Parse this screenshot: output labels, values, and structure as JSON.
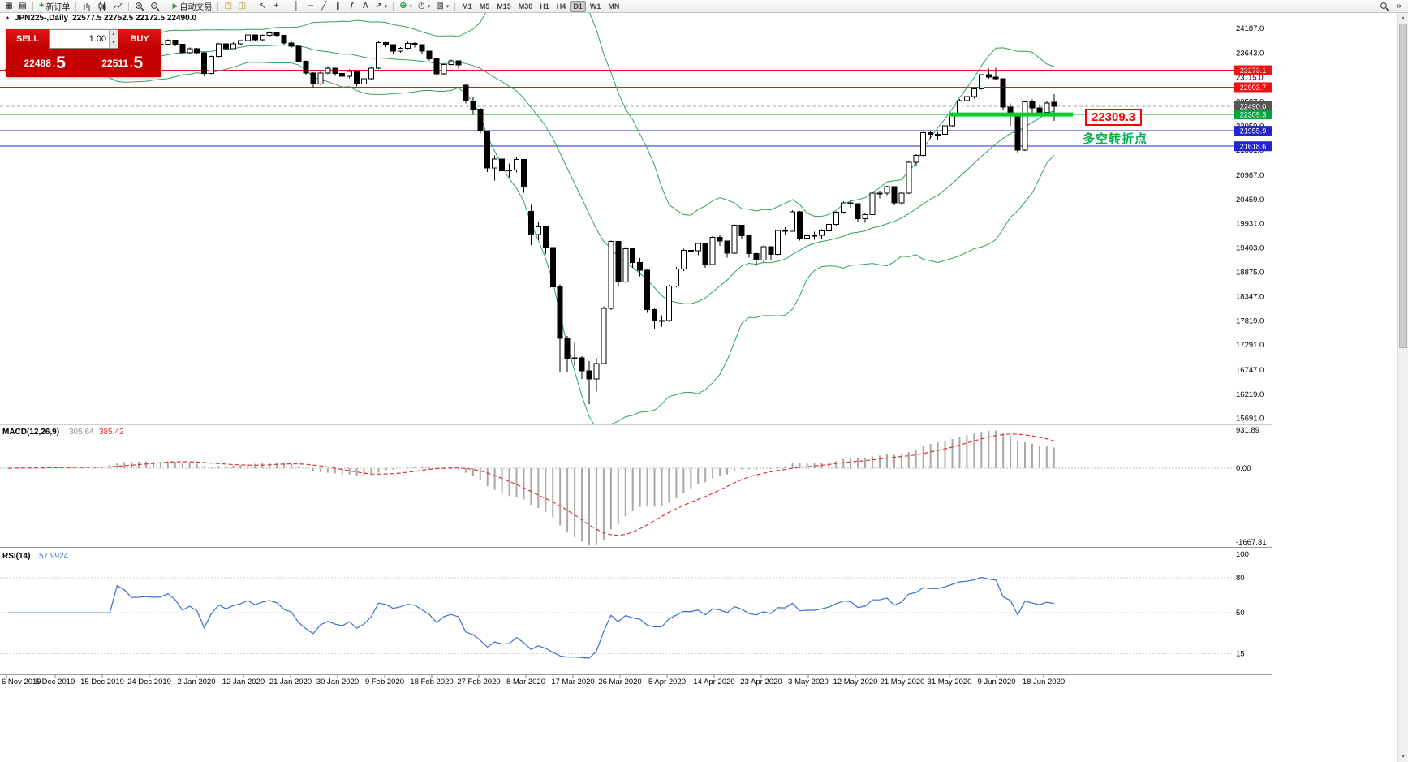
{
  "toolbar": {
    "new_order_label": "新订单",
    "autotrading_label": "自动交易",
    "timeframes": [
      "M1",
      "M5",
      "M15",
      "M30",
      "H1",
      "H4",
      "D1",
      "W1",
      "MN"
    ],
    "active_timeframe": "D1"
  },
  "chart_header": {
    "symbol": "JPN225-,Daily",
    "ohlc": "22577.5 22752.5 22172.5 22490.0"
  },
  "trade_panel": {
    "sell_label": "SELL",
    "buy_label": "BUY",
    "volume": "1.00",
    "sell_price_main": "22488",
    "sell_price_pip": "5",
    "buy_price_main": "22511",
    "buy_price_pip": "5"
  },
  "annotations": {
    "price_label": "22309.3",
    "price_label_color": "#ff0000",
    "note": "多空转折点",
    "note_color": "#00b050"
  },
  "price_axis": {
    "labels": [
      "24187.0",
      "23643.0",
      "23115.0",
      "22587.0",
      "22059.0",
      "21531.0",
      "20987.0",
      "20459.0",
      "19931.0",
      "19403.0",
      "18875.0",
      "18347.0",
      "17819.0",
      "17291.0",
      "16747.0",
      "16219.0",
      "15691.0"
    ],
    "tags": [
      {
        "text": "23273.1",
        "bg": "#ee1111"
      },
      {
        "text": "22903.7",
        "bg": "#ee1111"
      },
      {
        "text": "22490.0",
        "bg": "#555555"
      },
      {
        "text": "22309.3",
        "bg": "#00a53c"
      },
      {
        "text": "21955.9",
        "bg": "#2424cc"
      },
      {
        "text": "21618.6",
        "bg": "#2424cc"
      }
    ]
  },
  "levels": [
    {
      "value": 23273.1,
      "color": "#ee1111",
      "width": 1
    },
    {
      "value": 22903.7,
      "color": "#ee1111",
      "width": 1
    },
    {
      "value": 22490.0,
      "color": "#aaaaaa",
      "width": 1,
      "dash": "4 3"
    },
    {
      "value": 22309.3,
      "color": "#00b43c",
      "width": 1
    },
    {
      "value": 21955.9,
      "color": "#2424cc",
      "width": 1
    },
    {
      "value": 21618.6,
      "color": "#2424cc",
      "width": 1
    }
  ],
  "segment": {
    "value": 22309.3,
    "color": "#00cf30",
    "width": 5
  },
  "macd_panel": {
    "title": "MACD(12,26,9)",
    "value_main": "305.64",
    "value_signal": "385.42",
    "axis": [
      "931.89",
      "0.00",
      "-1667.31"
    ]
  },
  "rsi_panel": {
    "title": "RSI(14)",
    "value": "57.9924",
    "axis": [
      "100",
      "80",
      "50",
      "15"
    ],
    "levels": [
      80,
      50,
      15
    ]
  },
  "date_axis": {
    "labels": [
      "6 Nov 2019",
      "5 Dec 2019",
      "15 Dec 2019",
      "24 Dec 2019",
      "2 Jan 2020",
      "12 Jan 2020",
      "21 Jan 2020",
      "30 Jan 2020",
      "9 Feb 2020",
      "18 Feb 2020",
      "27 Feb 2020",
      "8 Mar 2020",
      "17 Mar 2020",
      "26 Mar 2020",
      "5 Apr 2020",
      "14 Apr 2020",
      "23 Apr 2020",
      "3 May 2020",
      "12 May 2020",
      "21 May 2020",
      "31 May 2020",
      "9 Jun 2020",
      "18 Jun 2020"
    ]
  },
  "chart_data": {
    "type": "candlestick",
    "symbol": "JPN225",
    "timeframe": "Daily",
    "price_range": [
      15580,
      24520
    ],
    "indicators": {
      "bollinger": {
        "period": 20,
        "deviation": 2
      },
      "macd": {
        "fast": 12,
        "slow": 26,
        "signal": 9
      },
      "rsi": {
        "period": 14
      }
    },
    "ohlc": [
      [
        23250,
        23310,
        23180,
        23293
      ],
      [
        23293,
        23400,
        23270,
        23373
      ],
      [
        23373,
        23430,
        23320,
        23380
      ],
      [
        23380,
        23420,
        23250,
        23295
      ],
      [
        23295,
        23350,
        23240,
        23294
      ],
      [
        23294,
        23560,
        23280,
        23530
      ],
      [
        23530,
        23550,
        23350,
        23380
      ],
      [
        23380,
        23410,
        23260,
        23300
      ],
      [
        23300,
        23450,
        23290,
        23424
      ],
      [
        23424,
        23440,
        23310,
        23354
      ],
      [
        23354,
        23460,
        23330,
        23430
      ],
      [
        23430,
        23470,
        23360,
        23410
      ],
      [
        23410,
        23450,
        23340,
        23392
      ],
      [
        23392,
        23460,
        23350,
        23424
      ],
      [
        23424,
        23980,
        23420,
        23952
      ],
      [
        23952,
        24050,
        23900,
        24023
      ],
      [
        24023,
        24060,
        23910,
        23952
      ],
      [
        23952,
        23970,
        23780,
        23817
      ],
      [
        23817,
        23870,
        23770,
        23821
      ],
      [
        23821,
        23880,
        23790,
        23841
      ],
      [
        23841,
        23870,
        23790,
        23830
      ],
      [
        23830,
        23870,
        23800,
        23838
      ],
      [
        23838,
        23950,
        23820,
        23924
      ],
      [
        23924,
        23940,
        23800,
        23837
      ],
      [
        23837,
        23850,
        23630,
        23657
      ],
      [
        23657,
        23770,
        23640,
        23740
      ],
      [
        23740,
        23760,
        23620,
        23656
      ],
      [
        23656,
        23670,
        23150,
        23205
      ],
      [
        23205,
        23590,
        23190,
        23576
      ],
      [
        23576,
        23870,
        23560,
        23851
      ],
      [
        23851,
        23860,
        23700,
        23740
      ],
      [
        23740,
        23880,
        23730,
        23851
      ],
      [
        23851,
        23930,
        23820,
        23916
      ],
      [
        23916,
        24060,
        23900,
        24041
      ],
      [
        24041,
        24050,
        23900,
        23933
      ],
      [
        23933,
        24050,
        23920,
        24031
      ],
      [
        24031,
        24120,
        24000,
        24083
      ],
      [
        24083,
        24100,
        23990,
        24031
      ],
      [
        24031,
        24040,
        23830,
        23865
      ],
      [
        23865,
        23900,
        23760,
        23795
      ],
      [
        23795,
        23810,
        23440,
        23469
      ],
      [
        23469,
        23490,
        23180,
        23216
      ],
      [
        23216,
        23230,
        22890,
        22977
      ],
      [
        22977,
        23250,
        22950,
        23215
      ],
      [
        23215,
        23360,
        23190,
        23320
      ],
      [
        23320,
        23330,
        23150,
        23205
      ],
      [
        23205,
        23240,
        23070,
        23139
      ],
      [
        23139,
        23290,
        23100,
        23250
      ],
      [
        23250,
        23260,
        22920,
        22972
      ],
      [
        22972,
        23120,
        22940,
        23085
      ],
      [
        23085,
        23350,
        23060,
        23320
      ],
      [
        23320,
        23900,
        23300,
        23874
      ],
      [
        23874,
        23890,
        23780,
        23828
      ],
      [
        23828,
        23840,
        23630,
        23686
      ],
      [
        23686,
        23780,
        23650,
        23750
      ],
      [
        23750,
        23890,
        23730,
        23861
      ],
      [
        23861,
        23880,
        23770,
        23828
      ],
      [
        23828,
        23840,
        23640,
        23687
      ],
      [
        23687,
        23700,
        23480,
        23523
      ],
      [
        23523,
        23530,
        23150,
        23194
      ],
      [
        23194,
        23420,
        23180,
        23401
      ],
      [
        23401,
        23500,
        23380,
        23479
      ],
      [
        23479,
        23490,
        23310,
        23387
      ],
      [
        22950,
        22970,
        22550,
        22605
      ],
      [
        22605,
        22680,
        22300,
        22426
      ],
      [
        22426,
        22450,
        21900,
        21948
      ],
      [
        21948,
        21960,
        21060,
        21143
      ],
      [
        21143,
        21420,
        20870,
        21344
      ],
      [
        21344,
        21480,
        21040,
        21083
      ],
      [
        21083,
        21240,
        20940,
        21100
      ],
      [
        21100,
        21390,
        21050,
        21329
      ],
      [
        21329,
        21340,
        20610,
        20750
      ],
      [
        20200,
        20340,
        19470,
        19699
      ],
      [
        19699,
        19980,
        19570,
        19867
      ],
      [
        19867,
        19880,
        19270,
        19416
      ],
      [
        19416,
        19430,
        18340,
        18560
      ],
      [
        18560,
        18610,
        16690,
        17431
      ],
      [
        17431,
        17490,
        16700,
        17002
      ],
      [
        17002,
        17340,
        16840,
        17012
      ],
      [
        17012,
        17050,
        16550,
        16727
      ],
      [
        16727,
        16940,
        16000,
        16553
      ],
      [
        16553,
        17000,
        16280,
        16888
      ],
      [
        16888,
        18130,
        16880,
        18092
      ],
      [
        18092,
        19560,
        18050,
        19547
      ],
      [
        19547,
        19560,
        18560,
        18665
      ],
      [
        18665,
        19420,
        18640,
        19389
      ],
      [
        19389,
        19400,
        18970,
        19085
      ],
      [
        19085,
        19180,
        18790,
        18917
      ],
      [
        18917,
        18950,
        17990,
        18065
      ],
      [
        18065,
        18090,
        17650,
        17819
      ],
      [
        17819,
        17940,
        17690,
        17820
      ],
      [
        17820,
        18600,
        17800,
        18576
      ],
      [
        18576,
        18990,
        18550,
        18950
      ],
      [
        18950,
        19390,
        18900,
        19353
      ],
      [
        19353,
        19420,
        19240,
        19346
      ],
      [
        19346,
        19520,
        19250,
        19499
      ],
      [
        19499,
        19510,
        18970,
        19043
      ],
      [
        19043,
        19660,
        19030,
        19639
      ],
      [
        19639,
        19680,
        19450,
        19551
      ],
      [
        19551,
        19560,
        19190,
        19290
      ],
      [
        19290,
        19920,
        19270,
        19897
      ],
      [
        19897,
        19910,
        19590,
        19669
      ],
      [
        19669,
        19680,
        19190,
        19281
      ],
      [
        19281,
        19300,
        19020,
        19138
      ],
      [
        19138,
        19460,
        19100,
        19429
      ],
      [
        19429,
        19440,
        19150,
        19262
      ],
      [
        19262,
        19800,
        19250,
        19783
      ],
      [
        19783,
        19860,
        19680,
        19771
      ],
      [
        19771,
        20230,
        19760,
        20194
      ],
      [
        20194,
        20210,
        19560,
        19619
      ],
      [
        19619,
        19700,
        19440,
        19674
      ],
      [
        19674,
        19760,
        19580,
        19675
      ],
      [
        19675,
        19810,
        19600,
        19780
      ],
      [
        19780,
        19940,
        19720,
        19914
      ],
      [
        19914,
        20200,
        19890,
        20180
      ],
      [
        20180,
        20420,
        20150,
        20390
      ],
      [
        20390,
        20440,
        20280,
        20366
      ],
      [
        20366,
        20380,
        19980,
        20037
      ],
      [
        20037,
        20160,
        19950,
        20133
      ],
      [
        20133,
        20620,
        20120,
        20596
      ],
      [
        20596,
        20650,
        20480,
        20595
      ],
      [
        20595,
        20760,
        20550,
        20741
      ],
      [
        20741,
        20750,
        20330,
        20388
      ],
      [
        20388,
        20620,
        20340,
        20595
      ],
      [
        20595,
        21290,
        20580,
        21271
      ],
      [
        21271,
        21450,
        21200,
        21419
      ],
      [
        21419,
        21930,
        21400,
        21916
      ],
      [
        21916,
        21950,
        21780,
        21878
      ],
      [
        21878,
        21930,
        21760,
        21878
      ],
      [
        21878,
        22090,
        21850,
        22062
      ],
      [
        22062,
        22360,
        22050,
        22326
      ],
      [
        22326,
        22650,
        22310,
        22614
      ],
      [
        22614,
        22730,
        22540,
        22696
      ],
      [
        22696,
        22890,
        22660,
        22864
      ],
      [
        22864,
        23190,
        22850,
        23178
      ],
      [
        23178,
        23310,
        23090,
        23125
      ],
      [
        23125,
        23330,
        23050,
        23091
      ],
      [
        23091,
        23100,
        22420,
        22472
      ],
      [
        22472,
        22550,
        22060,
        22305
      ],
      [
        22305,
        22330,
        21480,
        21531
      ],
      [
        21531,
        22600,
        21520,
        22582
      ],
      [
        22582,
        22640,
        22310,
        22456
      ],
      [
        22456,
        22530,
        22280,
        22355
      ],
      [
        22355,
        22600,
        22300,
        22560
      ],
      [
        22577.5,
        22752.5,
        22172.5,
        22490.0
      ]
    ]
  }
}
